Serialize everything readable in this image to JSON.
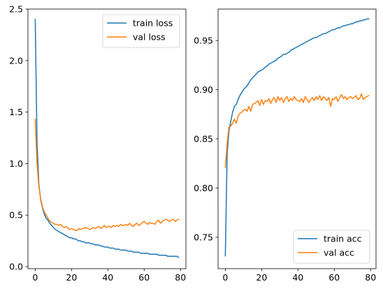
{
  "colors": {
    "train": "#1f77b4",
    "val": "#ff7f0e",
    "axis": "#000000",
    "legend_frame": "#cccccc"
  },
  "chart_data": [
    {
      "type": "line",
      "title": "",
      "xlabel": "",
      "ylabel": "",
      "xlim": [
        -4,
        83
      ],
      "ylim": [
        -0.02,
        2.5
      ],
      "xticks": [
        0,
        20,
        40,
        60,
        80
      ],
      "yticks": [
        0.0,
        0.5,
        1.0,
        1.5,
        2.0,
        2.5
      ],
      "ytick_labels": [
        "0.0",
        "0.5",
        "1.0",
        "1.5",
        "2.0",
        "2.5"
      ],
      "grid": false,
      "legend_position": "top-right",
      "series": [
        {
          "name": "train loss",
          "color": "#1f77b4",
          "x": [
            0,
            1,
            2,
            3,
            4,
            5,
            6,
            7,
            8,
            9,
            10,
            11,
            12,
            13,
            14,
            15,
            16,
            17,
            18,
            19,
            20,
            21,
            22,
            23,
            24,
            25,
            26,
            27,
            28,
            29,
            30,
            31,
            32,
            33,
            34,
            35,
            36,
            37,
            38,
            39,
            40,
            41,
            42,
            43,
            44,
            45,
            46,
            47,
            48,
            49,
            50,
            51,
            52,
            53,
            54,
            55,
            56,
            57,
            58,
            59,
            60,
            61,
            62,
            63,
            64,
            65,
            66,
            67,
            68,
            69,
            70,
            71,
            72,
            73,
            74,
            75,
            76,
            77,
            78,
            79
          ],
          "y": [
            2.4,
            1.2,
            0.8,
            0.65,
            0.57,
            0.51,
            0.47,
            0.45,
            0.42,
            0.4,
            0.38,
            0.36,
            0.35,
            0.34,
            0.33,
            0.32,
            0.31,
            0.3,
            0.29,
            0.28,
            0.28,
            0.27,
            0.27,
            0.26,
            0.25,
            0.25,
            0.24,
            0.24,
            0.23,
            0.23,
            0.23,
            0.22,
            0.22,
            0.21,
            0.21,
            0.21,
            0.2,
            0.2,
            0.19,
            0.19,
            0.19,
            0.18,
            0.18,
            0.18,
            0.17,
            0.17,
            0.17,
            0.16,
            0.16,
            0.16,
            0.16,
            0.15,
            0.15,
            0.15,
            0.14,
            0.14,
            0.14,
            0.14,
            0.13,
            0.13,
            0.13,
            0.13,
            0.13,
            0.12,
            0.12,
            0.12,
            0.12,
            0.12,
            0.11,
            0.11,
            0.11,
            0.11,
            0.11,
            0.1,
            0.1,
            0.1,
            0.1,
            0.1,
            0.1,
            0.09
          ]
        },
        {
          "name": "val loss",
          "color": "#ff7f0e",
          "x": [
            0,
            1,
            2,
            3,
            4,
            5,
            6,
            7,
            8,
            9,
            10,
            11,
            12,
            13,
            14,
            15,
            16,
            17,
            18,
            19,
            20,
            21,
            22,
            23,
            24,
            25,
            26,
            27,
            28,
            29,
            30,
            31,
            32,
            33,
            34,
            35,
            36,
            37,
            38,
            39,
            40,
            41,
            42,
            43,
            44,
            45,
            46,
            47,
            48,
            49,
            50,
            51,
            52,
            53,
            54,
            55,
            56,
            57,
            58,
            59,
            60,
            61,
            62,
            63,
            64,
            65,
            66,
            67,
            68,
            69,
            70,
            71,
            72,
            73,
            74,
            75,
            76,
            77,
            78,
            79
          ],
          "y": [
            1.43,
            1.0,
            0.78,
            0.66,
            0.58,
            0.53,
            0.5,
            0.47,
            0.44,
            0.43,
            0.42,
            0.41,
            0.41,
            0.4,
            0.41,
            0.39,
            0.38,
            0.39,
            0.37,
            0.36,
            0.37,
            0.36,
            0.35,
            0.35,
            0.37,
            0.36,
            0.37,
            0.37,
            0.38,
            0.37,
            0.36,
            0.37,
            0.38,
            0.37,
            0.38,
            0.39,
            0.37,
            0.38,
            0.4,
            0.38,
            0.39,
            0.39,
            0.38,
            0.4,
            0.39,
            0.4,
            0.39,
            0.41,
            0.4,
            0.4,
            0.41,
            0.4,
            0.42,
            0.4,
            0.39,
            0.41,
            0.42,
            0.4,
            0.41,
            0.43,
            0.44,
            0.42,
            0.41,
            0.43,
            0.42,
            0.42,
            0.41,
            0.44,
            0.45,
            0.42,
            0.44,
            0.45,
            0.46,
            0.45,
            0.44,
            0.45,
            0.46,
            0.44,
            0.45,
            0.46
          ]
        }
      ]
    },
    {
      "type": "line",
      "title": "",
      "xlabel": "",
      "ylabel": "",
      "xlim": [
        -4,
        83
      ],
      "ylim": [
        0.718,
        0.982
      ],
      "xticks": [
        0,
        20,
        40,
        60,
        80
      ],
      "yticks": [
        0.75,
        0.8,
        0.85,
        0.9,
        0.95
      ],
      "ytick_labels": [
        "0.75",
        "0.80",
        "0.85",
        "0.90",
        "0.95"
      ],
      "grid": false,
      "legend_position": "bottom-right",
      "series": [
        {
          "name": "train acc",
          "color": "#1f77b4",
          "x": [
            0,
            1,
            2,
            3,
            4,
            5,
            6,
            7,
            8,
            9,
            10,
            11,
            12,
            13,
            14,
            15,
            16,
            17,
            18,
            19,
            20,
            21,
            22,
            23,
            24,
            25,
            26,
            27,
            28,
            29,
            30,
            31,
            32,
            33,
            34,
            35,
            36,
            37,
            38,
            39,
            40,
            41,
            42,
            43,
            44,
            45,
            46,
            47,
            48,
            49,
            50,
            51,
            52,
            53,
            54,
            55,
            56,
            57,
            58,
            59,
            60,
            61,
            62,
            63,
            64,
            65,
            66,
            67,
            68,
            69,
            70,
            71,
            72,
            73,
            74,
            75,
            76,
            77,
            78,
            79
          ],
          "y": [
            0.731,
            0.835,
            0.858,
            0.868,
            0.877,
            0.883,
            0.885,
            0.89,
            0.894,
            0.897,
            0.9,
            0.902,
            0.904,
            0.907,
            0.91,
            0.912,
            0.914,
            0.916,
            0.918,
            0.919,
            0.92,
            0.921,
            0.923,
            0.924,
            0.926,
            0.927,
            0.928,
            0.929,
            0.93,
            0.932,
            0.933,
            0.934,
            0.936,
            0.936,
            0.937,
            0.938,
            0.94,
            0.941,
            0.942,
            0.943,
            0.944,
            0.945,
            0.946,
            0.947,
            0.948,
            0.949,
            0.95,
            0.951,
            0.952,
            0.953,
            0.953,
            0.954,
            0.955,
            0.956,
            0.957,
            0.957,
            0.958,
            0.959,
            0.96,
            0.961,
            0.961,
            0.962,
            0.963,
            0.963,
            0.964,
            0.965,
            0.965,
            0.966,
            0.966,
            0.967,
            0.967,
            0.968,
            0.969,
            0.969,
            0.97,
            0.97,
            0.971,
            0.971,
            0.972,
            0.972
          ]
        },
        {
          "name": "val acc",
          "color": "#ff7f0e",
          "x": [
            0,
            1,
            2,
            3,
            4,
            5,
            6,
            7,
            8,
            9,
            10,
            11,
            12,
            13,
            14,
            15,
            16,
            17,
            18,
            19,
            20,
            21,
            22,
            23,
            24,
            25,
            26,
            27,
            28,
            29,
            30,
            31,
            32,
            33,
            34,
            35,
            36,
            37,
            38,
            39,
            40,
            41,
            42,
            43,
            44,
            45,
            46,
            47,
            48,
            49,
            50,
            51,
            52,
            53,
            54,
            55,
            56,
            57,
            58,
            59,
            60,
            61,
            62,
            63,
            64,
            65,
            66,
            67,
            68,
            69,
            70,
            71,
            72,
            73,
            74,
            75,
            76,
            77,
            78,
            79
          ],
          "y": [
            0.821,
            0.845,
            0.862,
            0.863,
            0.866,
            0.87,
            0.866,
            0.873,
            0.876,
            0.877,
            0.879,
            0.88,
            0.878,
            0.883,
            0.878,
            0.885,
            0.886,
            0.887,
            0.889,
            0.884,
            0.89,
            0.885,
            0.889,
            0.888,
            0.891,
            0.886,
            0.89,
            0.892,
            0.887,
            0.893,
            0.889,
            0.892,
            0.887,
            0.891,
            0.893,
            0.888,
            0.891,
            0.889,
            0.893,
            0.89,
            0.889,
            0.888,
            0.891,
            0.887,
            0.893,
            0.89,
            0.887,
            0.89,
            0.892,
            0.889,
            0.893,
            0.89,
            0.894,
            0.889,
            0.893,
            0.891,
            0.889,
            0.892,
            0.883,
            0.891,
            0.89,
            0.893,
            0.888,
            0.892,
            0.895,
            0.891,
            0.893,
            0.89,
            0.892,
            0.893,
            0.891,
            0.892,
            0.894,
            0.89,
            0.891,
            0.896,
            0.89,
            0.892,
            0.893,
            0.894
          ]
        }
      ]
    }
  ]
}
